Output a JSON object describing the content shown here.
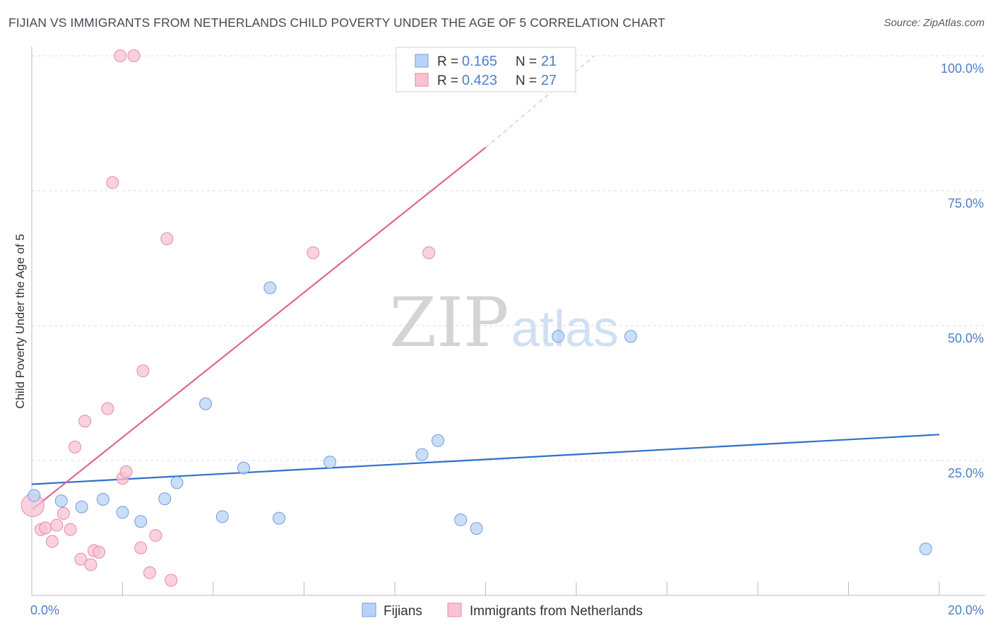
{
  "header": {
    "title": "FIJIAN VS IMMIGRANTS FROM NETHERLANDS CHILD POVERTY UNDER THE AGE OF 5 CORRELATION CHART",
    "source": "Source: ZipAtlas.com"
  },
  "watermark": {
    "zip": "ZIP",
    "atlas": "atlas"
  },
  "colors": {
    "blue_fill": "#b8d3f5",
    "blue_stroke": "#6f9fd8",
    "blue_line": "#2e6fcc",
    "pink_fill": "#f8c3d2",
    "pink_stroke": "#e68aa7",
    "pink_line": "#e0668f",
    "axis_text": "#4a7fcc",
    "grid": "#dcdcdc"
  },
  "chart_data": {
    "type": "scatter",
    "ylabel": "Child Poverty Under the Age of 5",
    "xlim": [
      0,
      20
    ],
    "ylim": [
      0,
      100
    ],
    "x_ticks": [
      0,
      2,
      4,
      6,
      8,
      10,
      12,
      14,
      16,
      18,
      20
    ],
    "x_tick_labels": {
      "left": "0.0%",
      "right": "20.0%"
    },
    "y_ticks": [
      25,
      50,
      75,
      100
    ],
    "y_tick_labels": [
      "25.0%",
      "50.0%",
      "75.0%",
      "100.0%"
    ],
    "grid": true,
    "legend_position": "top-center",
    "series": [
      {
        "name": "Fijians",
        "color_key": "blue",
        "R": "0.165",
        "N": "21",
        "trend": {
          "x": [
            0,
            20
          ],
          "y": [
            20.6,
            29.8
          ],
          "dashed_to": null
        },
        "points": [
          {
            "x": 0.05,
            "y": 18.5
          },
          {
            "x": 0.65,
            "y": 17.5
          },
          {
            "x": 1.1,
            "y": 16.4
          },
          {
            "x": 1.57,
            "y": 17.8
          },
          {
            "x": 2.0,
            "y": 15.4
          },
          {
            "x": 2.4,
            "y": 13.7
          },
          {
            "x": 2.93,
            "y": 17.9
          },
          {
            "x": 3.2,
            "y": 20.9
          },
          {
            "x": 3.83,
            "y": 35.5
          },
          {
            "x": 4.2,
            "y": 14.6
          },
          {
            "x": 4.67,
            "y": 23.6
          },
          {
            "x": 5.25,
            "y": 57.0
          },
          {
            "x": 5.45,
            "y": 14.3
          },
          {
            "x": 6.57,
            "y": 24.7
          },
          {
            "x": 8.6,
            "y": 26.1
          },
          {
            "x": 8.95,
            "y": 28.7
          },
          {
            "x": 9.45,
            "y": 14.0
          },
          {
            "x": 9.8,
            "y": 12.4
          },
          {
            "x": 11.6,
            "y": 48.0
          },
          {
            "x": 13.2,
            "y": 48.0
          },
          {
            "x": 19.7,
            "y": 8.6
          }
        ]
      },
      {
        "name": "Immigrants from Netherlands",
        "color_key": "pink",
        "R": "0.423",
        "N": "27",
        "trend": {
          "x": [
            0.02,
            10.0
          ],
          "y": [
            16.0,
            83.0
          ],
          "dashed_to": {
            "x": 12.4,
            "y": 100
          }
        },
        "points": [
          {
            "x": 0.02,
            "y": 16.7,
            "large": true
          },
          {
            "x": 0.2,
            "y": 12.2
          },
          {
            "x": 0.3,
            "y": 12.5
          },
          {
            "x": 0.45,
            "y": 10.0
          },
          {
            "x": 0.55,
            "y": 13.0
          },
          {
            "x": 0.7,
            "y": 15.2
          },
          {
            "x": 0.85,
            "y": 12.2
          },
          {
            "x": 0.95,
            "y": 27.5
          },
          {
            "x": 1.08,
            "y": 6.7
          },
          {
            "x": 1.17,
            "y": 32.3
          },
          {
            "x": 1.3,
            "y": 5.7
          },
          {
            "x": 1.37,
            "y": 8.3
          },
          {
            "x": 1.48,
            "y": 8.0
          },
          {
            "x": 1.67,
            "y": 34.6
          },
          {
            "x": 1.78,
            "y": 76.5
          },
          {
            "x": 1.95,
            "y": 100.0
          },
          {
            "x": 2.0,
            "y": 21.7
          },
          {
            "x": 2.08,
            "y": 22.9
          },
          {
            "x": 2.25,
            "y": 100.0
          },
          {
            "x": 2.4,
            "y": 8.8
          },
          {
            "x": 2.45,
            "y": 41.6
          },
          {
            "x": 2.6,
            "y": 4.2
          },
          {
            "x": 2.73,
            "y": 11.1
          },
          {
            "x": 2.98,
            "y": 66.1
          },
          {
            "x": 3.07,
            "y": 2.8
          },
          {
            "x": 6.2,
            "y": 63.5
          },
          {
            "x": 8.75,
            "y": 63.5
          }
        ]
      }
    ]
  }
}
